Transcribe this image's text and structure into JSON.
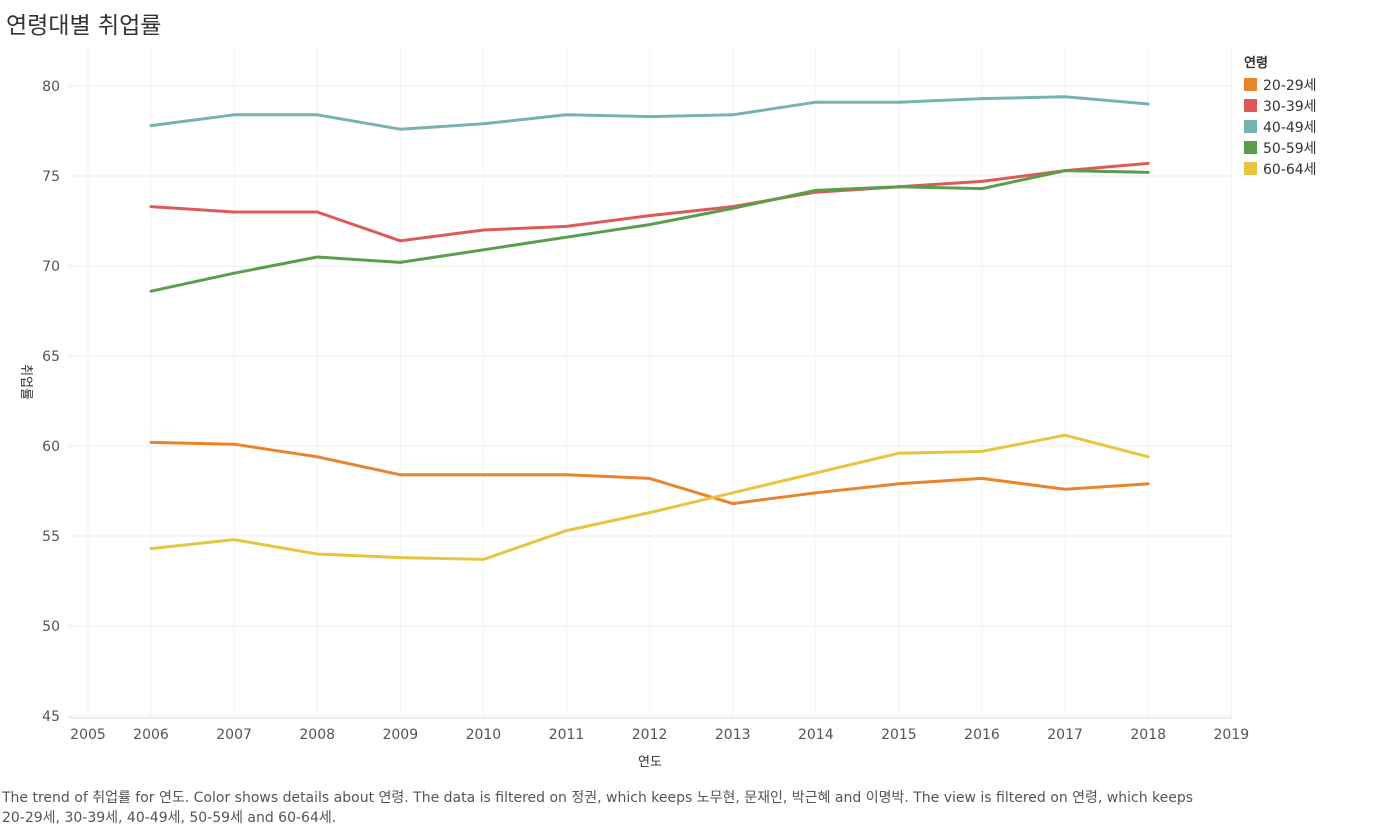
{
  "page": {
    "title": "연령대별 취업률",
    "caption_line1": "The trend of 취업률 for 연도.  Color shows details about 연령. The data is filtered on 정권, which keeps 노무현, 문재인, 박근혜 and 이명박. The view is filtered on 연령, which keeps",
    "caption_line2": "20-29세, 30-39세, 40-49세, 50-59세 and 60-64세."
  },
  "legend": {
    "title": "연령"
  },
  "chart_data": {
    "type": "line",
    "title": "연령대별 취업률",
    "xlabel": "연도",
    "ylabel": "취업률",
    "xlim": [
      2005,
      2019
    ],
    "ylim": [
      45,
      82
    ],
    "x_ticks": [
      2005,
      2006,
      2007,
      2008,
      2009,
      2010,
      2011,
      2012,
      2013,
      2014,
      2015,
      2016,
      2017,
      2018,
      2019
    ],
    "y_ticks": [
      45,
      50,
      55,
      60,
      65,
      70,
      75,
      80
    ],
    "grid": true,
    "legend_position": "top-right",
    "x": [
      2006,
      2007,
      2008,
      2009,
      2010,
      2011,
      2012,
      2013,
      2014,
      2015,
      2016,
      2017,
      2018
    ],
    "series": [
      {
        "name": "20-29세",
        "color": "#E8852C",
        "values": [
          60.2,
          60.1,
          59.4,
          58.4,
          58.4,
          58.4,
          58.2,
          56.8,
          57.4,
          57.9,
          58.2,
          57.6,
          57.9
        ]
      },
      {
        "name": "30-39세",
        "color": "#DD5A5A",
        "values": [
          73.3,
          73.0,
          73.0,
          71.4,
          72.0,
          72.2,
          72.8,
          73.3,
          74.1,
          74.4,
          74.7,
          75.3,
          75.7
        ]
      },
      {
        "name": "40-49세",
        "color": "#76B3AE",
        "values": [
          77.8,
          78.4,
          78.4,
          77.6,
          77.9,
          78.4,
          78.3,
          78.4,
          79.1,
          79.1,
          79.3,
          79.4,
          79.0
        ]
      },
      {
        "name": "50-59세",
        "color": "#5A9E4B",
        "values": [
          68.6,
          69.6,
          70.5,
          70.2,
          70.9,
          71.6,
          72.3,
          73.2,
          74.2,
          74.4,
          74.3,
          75.3,
          75.2
        ]
      },
      {
        "name": "60-64세",
        "color": "#E8C541",
        "values": [
          54.3,
          54.8,
          54.0,
          53.8,
          53.7,
          55.3,
          56.3,
          57.4,
          58.5,
          59.6,
          59.7,
          60.6,
          59.4
        ]
      }
    ]
  }
}
